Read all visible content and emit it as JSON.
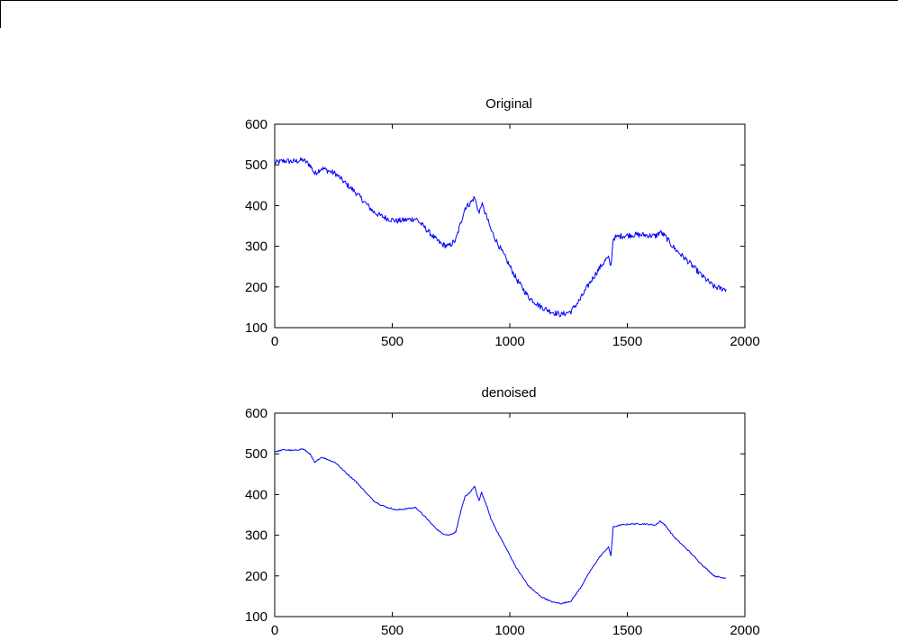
{
  "chart_data": [
    {
      "type": "line",
      "title": "Original",
      "xlabel": "",
      "ylabel": "",
      "xlim": [
        0,
        2000
      ],
      "ylim": [
        100,
        600
      ],
      "xticks": [
        0,
        500,
        1000,
        1500,
        2000
      ],
      "yticks": [
        100,
        200,
        300,
        400,
        500,
        600
      ],
      "xtick_labels": [
        "0",
        "500",
        "1000",
        "1500",
        "2000"
      ],
      "ytick_labels": [
        "100",
        "200",
        "300",
        "400",
        "500",
        "600"
      ],
      "grid": false,
      "noise": 14,
      "color": "#0000ff",
      "series": [
        {
          "x": [
            0,
            40,
            80,
            120,
            150,
            170,
            190,
            200,
            230,
            260,
            300,
            340,
            380,
            420,
            450,
            480,
            520,
            560,
            600,
            640,
            680,
            710,
            740,
            770,
            790,
            810,
            830,
            850,
            860,
            870,
            880,
            900,
            920,
            950,
            990,
            1030,
            1080,
            1130,
            1180,
            1220,
            1260,
            1300,
            1340,
            1380,
            1410,
            1420,
            1430,
            1440,
            1470,
            1520,
            1570,
            1620,
            1640,
            1660,
            1700,
            1760,
            1820,
            1870,
            1900,
            1920
          ],
          "y": [
            505,
            510,
            508,
            512,
            500,
            478,
            488,
            492,
            485,
            478,
            455,
            435,
            410,
            385,
            375,
            368,
            362,
            365,
            368,
            345,
            320,
            305,
            300,
            315,
            355,
            395,
            405,
            420,
            400,
            380,
            405,
            375,
            340,
            305,
            262,
            218,
            175,
            152,
            138,
            132,
            140,
            170,
            210,
            245,
            268,
            270,
            250,
            320,
            325,
            328,
            328,
            325,
            335,
            325,
            295,
            262,
            226,
            200,
            196,
            195
          ]
        }
      ]
    },
    {
      "type": "line",
      "title": "denoised",
      "xlabel": "",
      "ylabel": "",
      "xlim": [
        0,
        2000
      ],
      "ylim": [
        100,
        600
      ],
      "xticks": [
        0,
        500,
        1000,
        1500,
        2000
      ],
      "yticks": [
        100,
        200,
        300,
        400,
        500,
        600
      ],
      "xtick_labels": [
        "0",
        "500",
        "1000",
        "1500",
        "2000"
      ],
      "ytick_labels": [
        "100",
        "200",
        "300",
        "400",
        "500",
        "600"
      ],
      "grid": false,
      "noise": 3,
      "color": "#0000ff",
      "series": [
        {
          "x": [
            0,
            40,
            80,
            120,
            150,
            170,
            190,
            200,
            230,
            260,
            300,
            340,
            380,
            420,
            450,
            480,
            520,
            560,
            600,
            640,
            680,
            710,
            740,
            770,
            790,
            810,
            830,
            850,
            860,
            870,
            880,
            900,
            920,
            950,
            990,
            1030,
            1080,
            1130,
            1180,
            1220,
            1260,
            1300,
            1340,
            1380,
            1410,
            1420,
            1430,
            1440,
            1470,
            1520,
            1570,
            1620,
            1640,
            1660,
            1700,
            1760,
            1820,
            1870,
            1900,
            1920
          ],
          "y": [
            505,
            510,
            508,
            512,
            500,
            478,
            488,
            492,
            485,
            478,
            455,
            435,
            410,
            385,
            375,
            368,
            362,
            365,
            368,
            345,
            320,
            305,
            300,
            308,
            355,
            395,
            405,
            420,
            400,
            385,
            405,
            375,
            340,
            305,
            262,
            218,
            175,
            150,
            136,
            132,
            138,
            170,
            210,
            245,
            265,
            270,
            250,
            320,
            325,
            328,
            328,
            325,
            335,
            325,
            295,
            262,
            226,
            200,
            196,
            195
          ]
        }
      ]
    }
  ]
}
